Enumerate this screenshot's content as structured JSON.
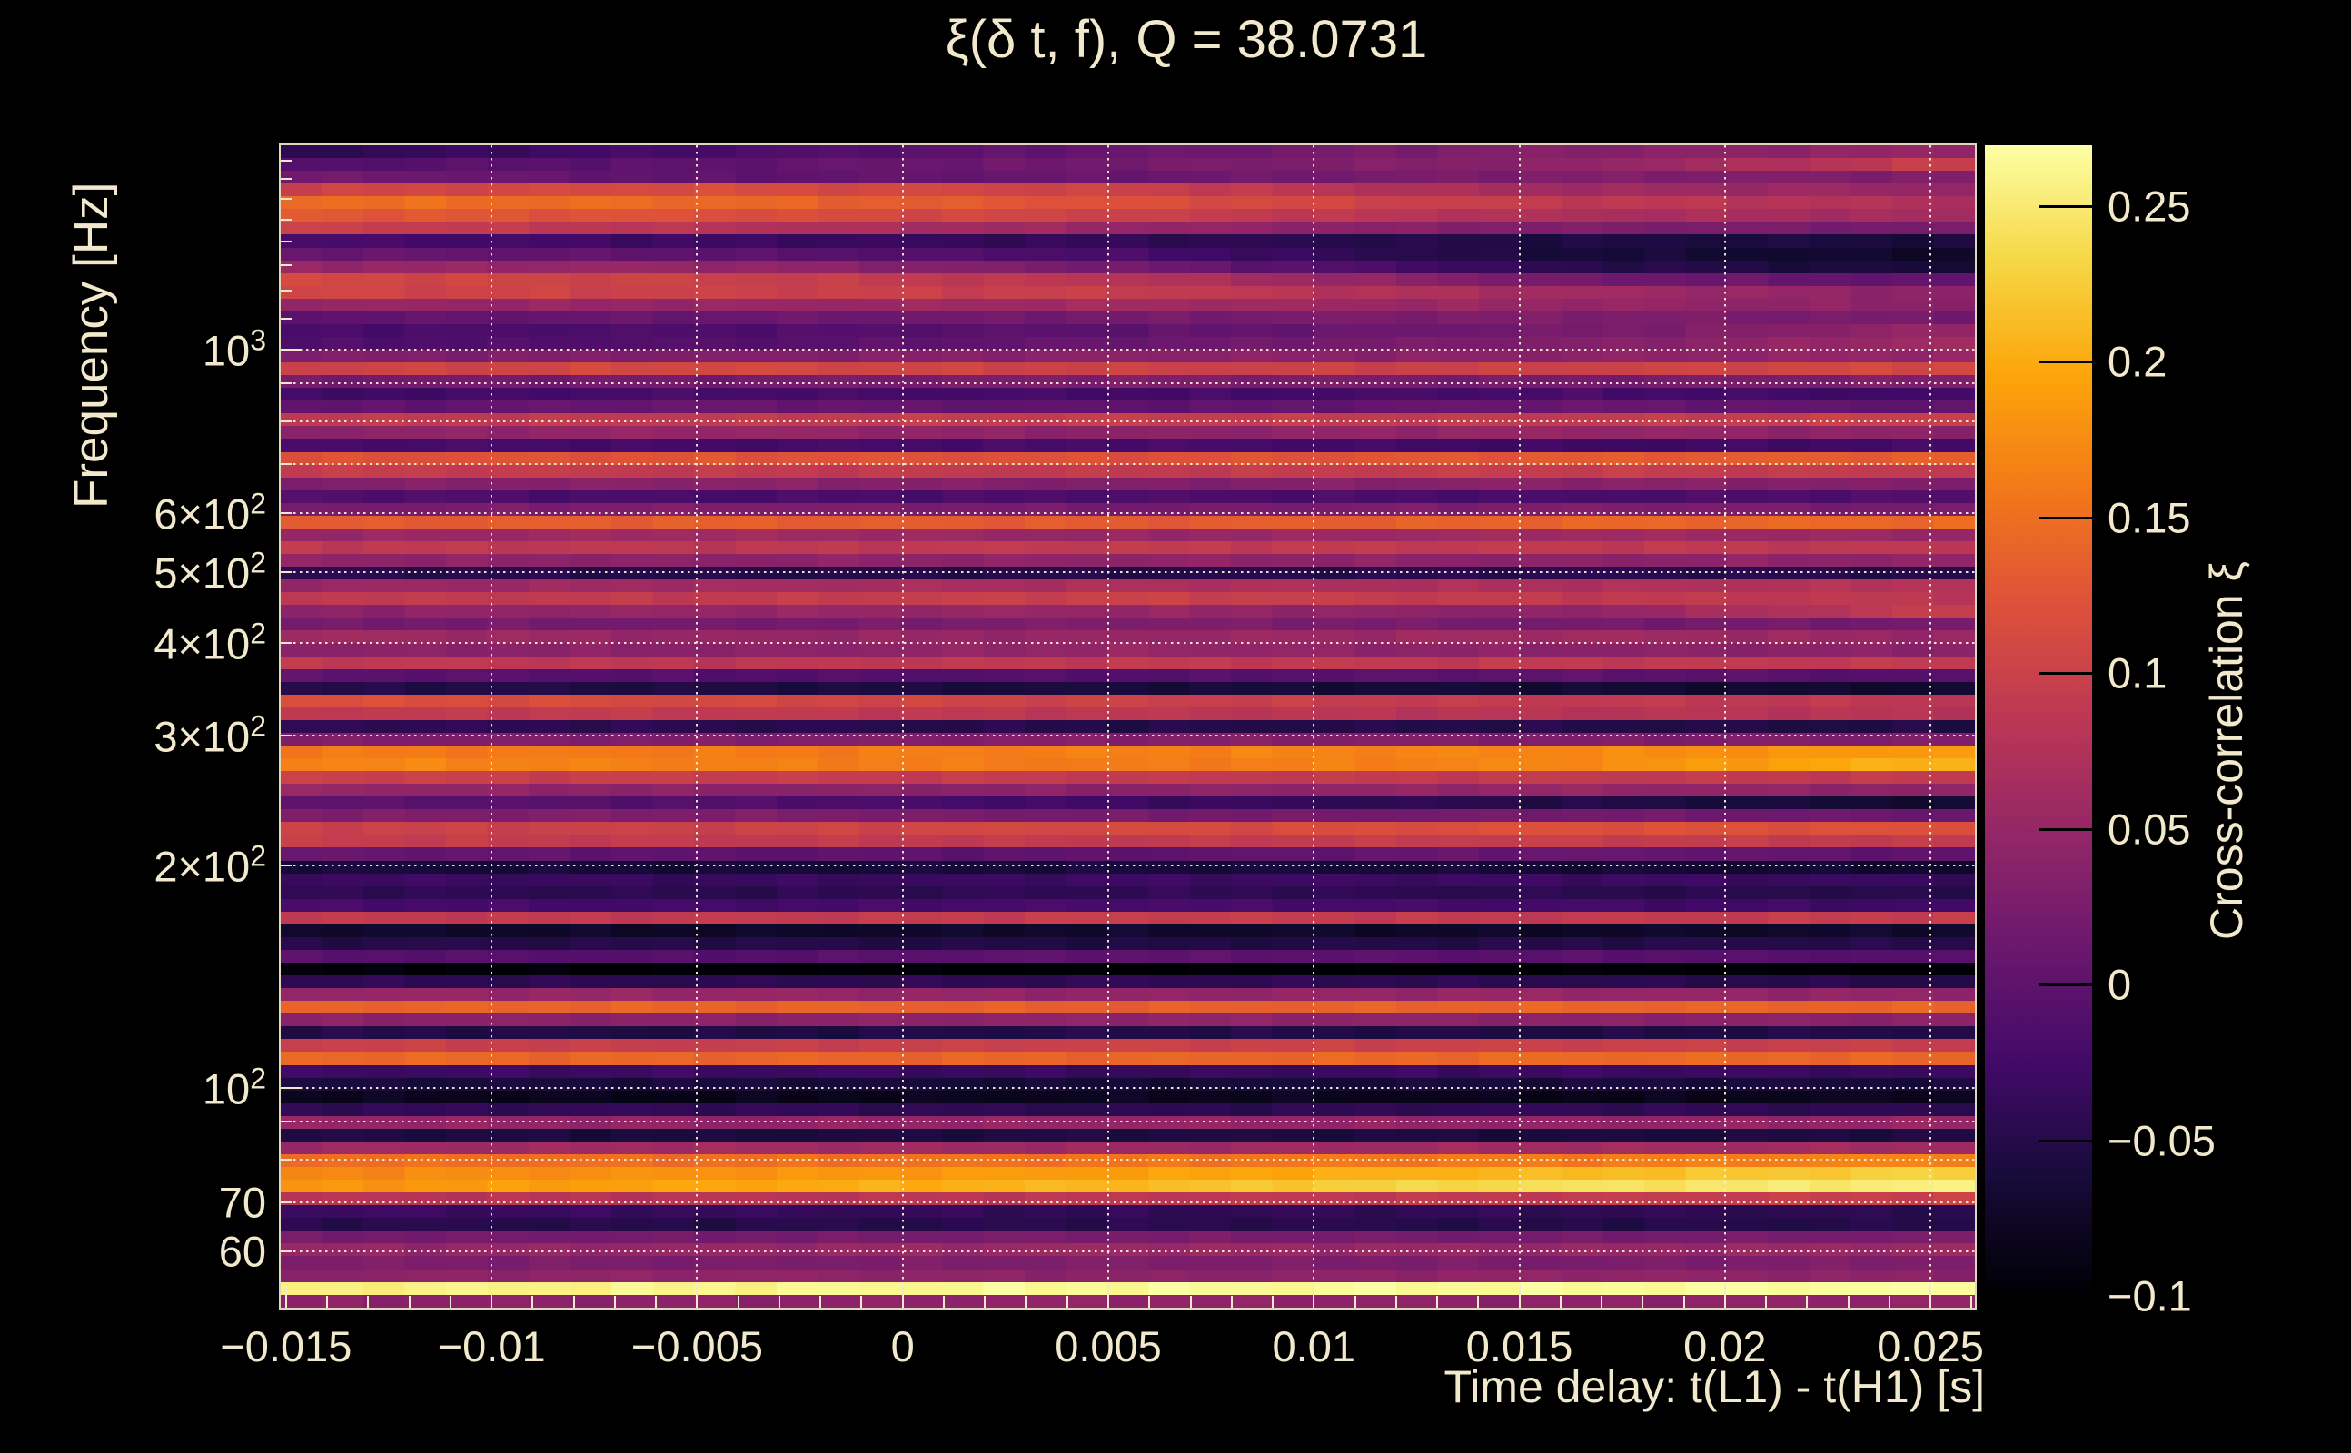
{
  "title": "ξ(δ t, f), Q = 38.0731",
  "axes": {
    "x": {
      "label": "Time delay: t(L1) - t(H1) [s]",
      "range": [
        -0.01513,
        0.02608
      ],
      "ticks": [
        {
          "t": -0.015,
          "label": "−0.015"
        },
        {
          "t": -0.01,
          "label": "−0.01"
        },
        {
          "t": -0.005,
          "label": "−0.005"
        },
        {
          "t": 0,
          "label": "0"
        },
        {
          "t": 0.005,
          "label": "0.005"
        },
        {
          "t": 0.01,
          "label": "0.01"
        },
        {
          "t": 0.015,
          "label": "0.015"
        },
        {
          "t": 0.02,
          "label": "0.02"
        },
        {
          "t": 0.025,
          "label": "0.025"
        }
      ],
      "minor_tick_step": 0.001
    },
    "y": {
      "label": "Frequency [Hz]",
      "scale": "log",
      "range_hz": [
        50.4,
        1890
      ],
      "ticks": [
        {
          "f": 1000,
          "base": "10",
          "exp": "3"
        },
        {
          "f": 600,
          "base": "6×10",
          "exp": "2"
        },
        {
          "f": 500,
          "base": "5×10",
          "exp": "2"
        },
        {
          "f": 400,
          "base": "4×10",
          "exp": "2"
        },
        {
          "f": 300,
          "base": "3×10",
          "exp": "2"
        },
        {
          "f": 200,
          "base": "2×10",
          "exp": "2"
        },
        {
          "f": 100,
          "base": "10",
          "exp": "2"
        },
        {
          "f": 70,
          "base": "70",
          "exp": ""
        },
        {
          "f": 60,
          "base": "60",
          "exp": ""
        }
      ],
      "gridline_freqs": [
        1000,
        900,
        800,
        700,
        600,
        500,
        400,
        300,
        200,
        100,
        90,
        80,
        70,
        60
      ],
      "minor_tick_freqs": [
        1800,
        1700,
        1600,
        1500,
        1400,
        1300,
        1200,
        1100,
        900,
        800,
        700,
        600,
        500,
        400,
        300,
        200,
        90,
        80,
        70,
        60
      ]
    }
  },
  "colorbar": {
    "label": "Cross-correlation ξ",
    "value_range": [
      -0.0993,
      0.2694
    ],
    "ticks": [
      {
        "v": 0.25,
        "label": "0.25"
      },
      {
        "v": 0.2,
        "label": "0.2"
      },
      {
        "v": 0.15,
        "label": "0.15"
      },
      {
        "v": 0.1,
        "label": "0.1"
      },
      {
        "v": 0.05,
        "label": "0.05"
      },
      {
        "v": 0,
        "label": "0"
      },
      {
        "v": -0.05,
        "label": "−0.05"
      },
      {
        "v": -0.1,
        "label": "−0.1"
      }
    ]
  },
  "colors": {
    "background": "#000000",
    "text": "#f2e9cc",
    "grid": "#f5eeda",
    "palette": "inferno",
    "inferno_anchors": [
      "#000004",
      "#160b39",
      "#420a68",
      "#6a176e",
      "#932667",
      "#bc3754",
      "#dd513a",
      "#f37819",
      "#fca50a",
      "#f6d746",
      "#fcffa4"
    ]
  },
  "chart_data": {
    "type": "heatmap",
    "title": "ξ(δ t, f), Q = 38.0731",
    "xlabel": "Time delay: t(L1) - t(H1) [s]",
    "ylabel": "Frequency [Hz]",
    "colorbar_label": "Cross-correlation ξ",
    "x_range_s": [
      -0.01513,
      0.02608
    ],
    "y_range_hz": [
      50.4,
      1890
    ],
    "log_y": true,
    "value_range": [
      -0.0993,
      0.2694
    ],
    "n_rows": 91,
    "n_cols": 41,
    "rows_order": "top-to-bottom, log-spaced in frequency",
    "control_fractions": [
      0,
      0.25,
      0.5,
      0.75,
      1
    ],
    "rows": [
      [
        -0.045,
        -0.02,
        0.01,
        0.035,
        0.05
      ],
      [
        -0.01,
        0.0,
        0.02,
        0.04,
        0.1
      ],
      [
        0.02,
        0.0,
        0.01,
        0.03,
        0.03
      ],
      [
        0.1,
        0.115,
        0.1,
        0.06,
        0.05
      ],
      [
        0.15,
        0.145,
        0.12,
        0.09,
        0.07
      ],
      [
        0.13,
        0.12,
        0.1,
        0.07,
        0.06
      ],
      [
        0.1,
        0.08,
        0.05,
        0.03,
        0.02
      ],
      [
        -0.02,
        -0.03,
        -0.04,
        -0.055,
        -0.06
      ],
      [
        0.01,
        0.0,
        -0.02,
        -0.06,
        -0.075
      ],
      [
        0.05,
        0.05,
        0.02,
        -0.045,
        -0.065
      ],
      [
        0.11,
        0.1,
        0.08,
        0.02,
        0.0
      ],
      [
        0.105,
        0.1,
        0.095,
        0.06,
        0.04
      ],
      [
        0.05,
        0.05,
        0.06,
        0.05,
        0.04
      ],
      [
        0.0,
        0.01,
        0.02,
        0.03,
        0.02
      ],
      [
        -0.02,
        -0.015,
        0.0,
        0.02,
        0.05
      ],
      [
        -0.015,
        -0.01,
        0.01,
        0.03,
        0.06
      ],
      [
        0.03,
        0.03,
        0.04,
        0.04,
        0.05
      ],
      [
        0.1,
        0.11,
        0.1,
        0.1,
        0.11
      ],
      [
        0.02,
        0.02,
        0.03,
        0.02,
        0.03
      ],
      [
        -0.03,
        -0.02,
        -0.025,
        -0.02,
        -0.03
      ],
      [
        0.0,
        0.01,
        0.0,
        0.01,
        0.0
      ],
      [
        0.09,
        0.09,
        0.095,
        0.09,
        0.1
      ],
      [
        0.04,
        0.05,
        0.04,
        0.05,
        0.04
      ],
      [
        -0.02,
        -0.025,
        -0.02,
        -0.03,
        -0.025
      ],
      [
        0.12,
        0.125,
        0.12,
        0.13,
        0.135
      ],
      [
        0.095,
        0.09,
        0.09,
        0.095,
        0.09
      ],
      [
        0.03,
        0.04,
        0.03,
        0.04,
        0.03
      ],
      [
        -0.01,
        -0.02,
        -0.015,
        -0.02,
        -0.01
      ],
      [
        0.02,
        0.03,
        0.02,
        0.03,
        0.02
      ],
      [
        0.13,
        0.135,
        0.13,
        0.14,
        0.145
      ],
      [
        0.05,
        0.06,
        0.05,
        0.06,
        0.05
      ],
      [
        0.09,
        0.085,
        0.09,
        0.09,
        0.085
      ],
      [
        0.045,
        0.04,
        0.045,
        0.04,
        0.045
      ],
      [
        -0.045,
        -0.05,
        -0.05,
        -0.045,
        -0.05
      ],
      [
        0.05,
        0.06,
        0.07,
        0.07,
        0.08
      ],
      [
        0.09,
        0.09,
        0.1,
        0.09,
        0.085
      ],
      [
        0.04,
        0.05,
        0.05,
        0.04,
        0.1
      ],
      [
        0.02,
        0.02,
        0.03,
        0.02,
        0.02
      ],
      [
        0.06,
        0.05,
        0.05,
        0.06,
        0.05
      ],
      [
        0.04,
        0.04,
        0.05,
        0.04,
        0.04
      ],
      [
        0.09,
        0.085,
        0.09,
        0.09,
        0.09
      ],
      [
        0.0,
        -0.01,
        -0.01,
        0.0,
        -0.01
      ],
      [
        -0.05,
        -0.055,
        -0.06,
        -0.065,
        -0.07
      ],
      [
        0.12,
        0.11,
        0.1,
        0.09,
        0.085
      ],
      [
        0.09,
        0.09,
        0.085,
        0.08,
        0.08
      ],
      [
        -0.04,
        -0.045,
        -0.05,
        -0.05,
        -0.055
      ],
      [
        0.03,
        0.03,
        0.035,
        0.03,
        0.03
      ],
      [
        0.16,
        0.16,
        0.165,
        0.17,
        0.19
      ],
      [
        0.17,
        0.165,
        0.16,
        0.17,
        0.21
      ],
      [
        0.1,
        0.095,
        0.09,
        0.09,
        0.09
      ],
      [
        0.05,
        0.04,
        0.04,
        0.05,
        0.04
      ],
      [
        0.0,
        -0.01,
        -0.03,
        -0.05,
        -0.07
      ],
      [
        0.03,
        0.03,
        0.02,
        0.02,
        0.01
      ],
      [
        0.1,
        0.1,
        0.11,
        0.12,
        0.12
      ],
      [
        0.095,
        0.09,
        0.09,
        0.095,
        0.09
      ],
      [
        0.01,
        0.0,
        0.0,
        0.01,
        0.0
      ],
      [
        -0.06,
        -0.065,
        -0.06,
        -0.065,
        -0.07
      ],
      [
        -0.03,
        -0.035,
        -0.03,
        -0.03,
        -0.035
      ],
      [
        -0.04,
        -0.045,
        -0.04,
        -0.045,
        -0.05
      ],
      [
        -0.02,
        -0.025,
        -0.02,
        -0.025,
        -0.03
      ],
      [
        0.09,
        0.09,
        0.095,
        0.09,
        0.095
      ],
      [
        -0.07,
        -0.075,
        -0.07,
        -0.075,
        -0.07
      ],
      [
        -0.05,
        -0.05,
        -0.055,
        -0.05,
        -0.05
      ],
      [
        -0.005,
        -0.01,
        0.0,
        -0.005,
        -0.01
      ],
      [
        -0.095,
        -0.098,
        -0.099,
        -0.098,
        -0.099
      ],
      [
        -0.04,
        -0.045,
        -0.04,
        -0.045,
        -0.05
      ],
      [
        0.05,
        0.05,
        0.045,
        0.05,
        0.045
      ],
      [
        0.14,
        0.14,
        0.135,
        0.14,
        0.14
      ],
      [
        0.04,
        0.04,
        0.045,
        0.04,
        0.04
      ],
      [
        -0.05,
        -0.055,
        -0.05,
        -0.055,
        -0.05
      ],
      [
        0.1,
        0.095,
        0.1,
        0.1,
        0.095
      ],
      [
        0.145,
        0.14,
        0.14,
        0.145,
        0.14
      ],
      [
        -0.03,
        -0.03,
        -0.035,
        -0.03,
        -0.035
      ],
      [
        -0.06,
        -0.06,
        -0.065,
        -0.06,
        -0.06
      ],
      [
        -0.08,
        -0.085,
        -0.08,
        -0.085,
        -0.08
      ],
      [
        -0.04,
        -0.04,
        -0.045,
        -0.04,
        -0.045
      ],
      [
        0.05,
        0.045,
        0.05,
        0.045,
        0.05
      ],
      [
        -0.055,
        -0.06,
        -0.055,
        -0.06,
        -0.055
      ],
      [
        0.055,
        0.06,
        0.055,
        0.06,
        0.06
      ],
      [
        0.15,
        0.15,
        0.155,
        0.16,
        0.17
      ],
      [
        0.17,
        0.18,
        0.19,
        0.21,
        0.23
      ],
      [
        0.18,
        0.195,
        0.21,
        0.24,
        0.255
      ],
      [
        0.08,
        0.08,
        0.085,
        0.09,
        0.1
      ],
      [
        -0.03,
        -0.035,
        -0.04,
        -0.04,
        -0.045
      ],
      [
        -0.045,
        -0.05,
        -0.045,
        -0.05,
        -0.05
      ],
      [
        0.02,
        0.02,
        0.025,
        0.02,
        0.025
      ],
      [
        0.05,
        0.05,
        0.055,
        0.05,
        0.055
      ],
      [
        0.03,
        0.025,
        0.03,
        0.025,
        0.03
      ],
      [
        0.04,
        0.045,
        0.04,
        0.045,
        0.04
      ],
      [
        0.255,
        0.26,
        0.265,
        0.265,
        0.27
      ],
      [
        0.04,
        0.04,
        0.045,
        0.04,
        0.045
      ]
    ]
  }
}
